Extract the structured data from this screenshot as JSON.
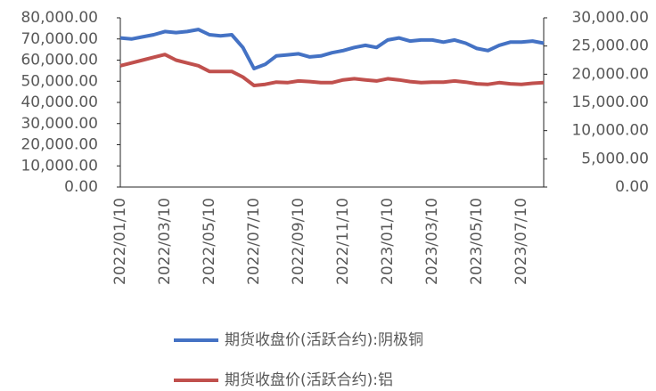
{
  "chart_data": {
    "type": "line",
    "categories": [
      "2022/01/10",
      null,
      null,
      null,
      "2022/03/10",
      null,
      null,
      null,
      "2022/05/10",
      null,
      null,
      null,
      "2022/07/10",
      null,
      null,
      null,
      "2022/09/10",
      null,
      null,
      null,
      "2022/11/10",
      null,
      null,
      null,
      "2023/01/10",
      null,
      null,
      null,
      "2023/03/10",
      null,
      null,
      null,
      "2023/05/10",
      null,
      null,
      null,
      "2023/07/10",
      null,
      null
    ],
    "series": [
      {
        "name": "期货收盘价(活跃合约):阴极铜",
        "color": "#4472c4",
        "values": [
          70500,
          70000,
          71000,
          72000,
          73500,
          73000,
          73500,
          74500,
          72000,
          71500,
          72000,
          66000,
          56000,
          58000,
          62000,
          62500,
          63000,
          61500,
          62000,
          63500,
          64500,
          66000,
          67000,
          66000,
          69500,
          70500,
          69000,
          69500,
          69500,
          68500,
          69500,
          68000,
          65500,
          64500,
          67000,
          68500,
          68500,
          69000,
          68000
        ]
      },
      {
        "name": "期货收盘价(活跃合约):铝",
        "color": "#c0504d",
        "axis": "y2",
        "values": [
          21500,
          22000,
          22500,
          23000,
          23500,
          22500,
          22000,
          21500,
          20500,
          20500,
          20500,
          19500,
          18000,
          18200,
          18600,
          18500,
          18800,
          18700,
          18500,
          18500,
          19000,
          19200,
          19000,
          18800,
          19200,
          19000,
          18700,
          18500,
          18600,
          18600,
          18800,
          18600,
          18300,
          18200,
          18500,
          18300,
          18200,
          18400,
          18500
        ]
      }
    ],
    "ylim": [
      0,
      80000
    ],
    "yticks": [
      {
        "value": 0,
        "label": "0.00"
      },
      {
        "value": 10000,
        "label": "10,000.00"
      },
      {
        "value": 20000,
        "label": "20,000.00"
      },
      {
        "value": 30000,
        "label": "30,000.00"
      },
      {
        "value": 40000,
        "label": "40,000.00"
      },
      {
        "value": 50000,
        "label": "50,000.00"
      },
      {
        "value": 60000,
        "label": "60,000.00"
      },
      {
        "value": 70000,
        "label": "70,000.00"
      },
      {
        "value": 80000,
        "label": "80,000.00"
      }
    ],
    "y2lim": [
      0,
      30000
    ],
    "y2ticks": [
      {
        "value": 0,
        "label": "0.00"
      },
      {
        "value": 5000,
        "label": "5,000.00"
      },
      {
        "value": 10000,
        "label": "10,000.00"
      },
      {
        "value": 15000,
        "label": "15,000.00"
      },
      {
        "value": 20000,
        "label": "20,000.00"
      },
      {
        "value": 25000,
        "label": "25,000.00"
      },
      {
        "value": 30000,
        "label": "30,000.00"
      }
    ],
    "grid": false,
    "legend": "bottom"
  }
}
